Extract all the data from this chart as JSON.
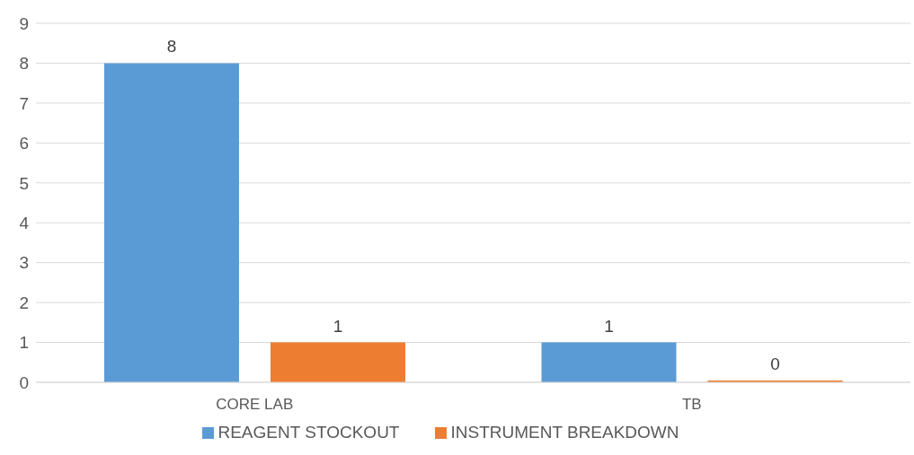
{
  "chart_data": {
    "type": "bar",
    "categories": [
      "CORE LAB",
      "TB"
    ],
    "series": [
      {
        "name": "REAGENT STOCKOUT",
        "color": "#5b9bd5",
        "values": [
          8,
          1
        ]
      },
      {
        "name": "INSTRUMENT BREAKDOWN",
        "color": "#ed7d31",
        "values": [
          1,
          0
        ]
      }
    ],
    "ylim": [
      0,
      9
    ],
    "yticks": [
      0,
      1,
      2,
      3,
      4,
      5,
      6,
      7,
      8,
      9
    ],
    "grid": "y",
    "legend": "bottom",
    "data_labels": true
  }
}
